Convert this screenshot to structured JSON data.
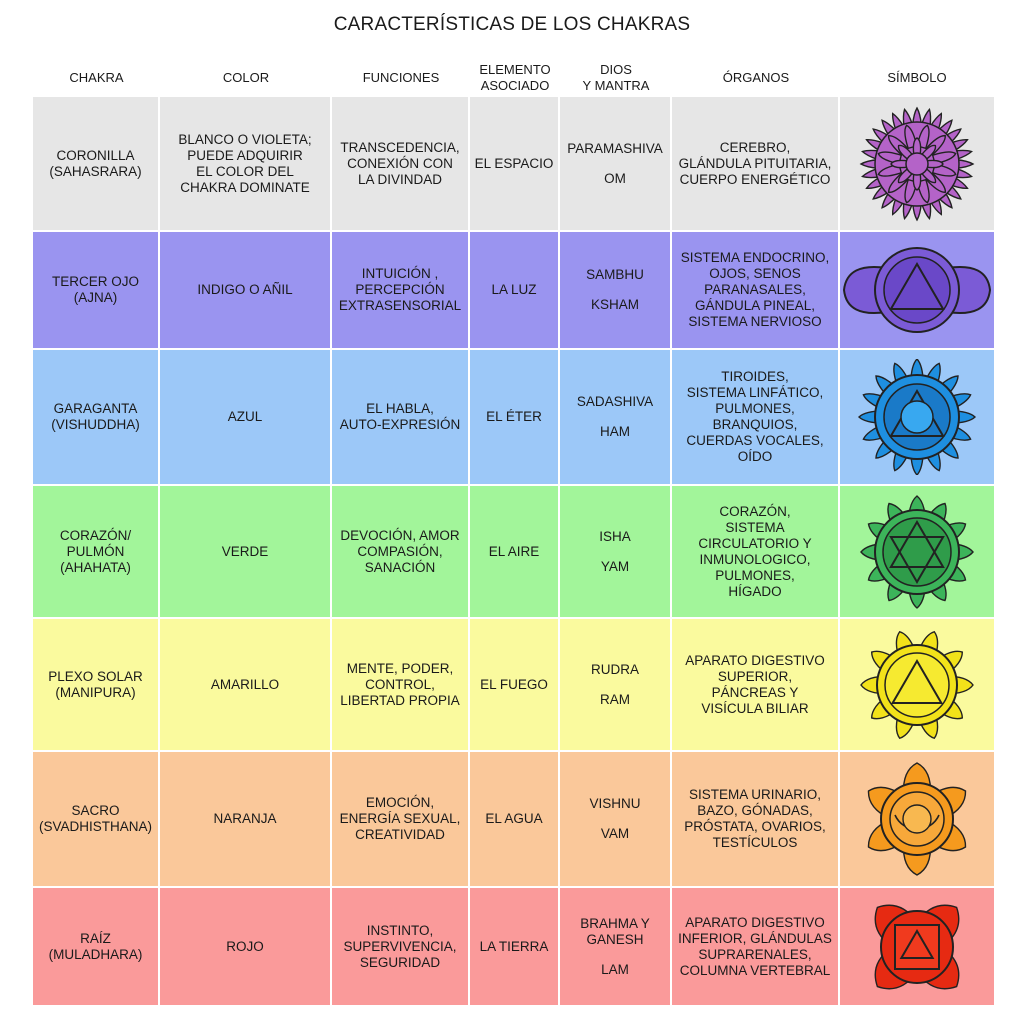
{
  "title": "CARACTERÍSTICAS DE LOS CHAKRAS",
  "headers": [
    "CHAKRA",
    "COLOR",
    "FUNCIONES",
    "ELEMENTO\nASOCIADO",
    "DIOS\nY MANTRA",
    "ÓRGANOS",
    "SÍMBOLO"
  ],
  "rows": [
    {
      "chakra": "CORONILLA\n(SAHASRARA)",
      "color": "BLANCO O VIOLETA;\nPUEDE ADQUIRIR\nEL COLOR DEL\nCHAKRA DOMINATE",
      "funciones": "TRANSCEDENCIA,\nCONEXIÓN CON\nLA DIVINDAD",
      "elemento": "EL ESPACIO",
      "dios": "PARAMASHIVA",
      "mantra": "OM",
      "organos": "CEREBRO,\nGLÁNDULA PITUITARIA,\nCUERPO ENERGÉTICO",
      "symbol_icon": "crown-chakra-icon",
      "bg": "#e6e6e6",
      "symbol_color": "#b463c8"
    },
    {
      "chakra": "TERCER OJO\n(AJNA)",
      "color": "INDIGO O AÑIL",
      "funciones": "INTUICIÓN ,\nPERCEPCIÓN\nEXTRASENSORIAL",
      "elemento": "LA LUZ",
      "dios": "SAMBHU",
      "mantra": "KSHAM",
      "organos": "SISTEMA ENDOCRINO,\nOJOS, SENOS\nPARANASALES,\nGÁNDULA PINEAL,\nSISTEMA NERVIOSO",
      "symbol_icon": "third-eye-chakra-icon",
      "bg": "#9a94f0",
      "symbol_color": "#7b5bd6"
    },
    {
      "chakra": "GARAGANTA\n(VISHUDDHA)",
      "color": "AZUL",
      "funciones": "EL HABLA,\nAUTO-EXPRESIÓN",
      "elemento": "EL ÉTER",
      "dios": "SADASHIVA",
      "mantra": "HAM",
      "organos": "TIROIDES,\nSISTEMA LINFÁTICO,\nPULMONES,\nBRANQUIOS,\nCUERDAS VOCALES,\nOÍDO",
      "symbol_icon": "throat-chakra-icon",
      "bg": "#9cc8f8",
      "symbol_color": "#1e8fe0"
    },
    {
      "chakra": "CORAZÓN/\nPULMÓN\n(AHAHATA)",
      "color": "VERDE",
      "funciones": "DEVOCIÓN, AMOR\nCOMPASIÓN,\nSANACIÓN",
      "elemento": "EL AIRE",
      "dios": "ISHA",
      "mantra": "YAM",
      "organos": "CORAZÓN,\nSISTEMA\nCIRCULATORIO Y\nINMUNOLOGICO,\nPULMONES,\nHÍGADO",
      "symbol_icon": "heart-chakra-icon",
      "bg": "#a2f59a",
      "symbol_color": "#3cb45a"
    },
    {
      "chakra": "PLEXO SOLAR\n(MANIPURA)",
      "color": "AMARILLO",
      "funciones": "MENTE, PODER,\nCONTROL,\nLIBERTAD PROPIA",
      "elemento": "EL FUEGO",
      "dios": "RUDRA",
      "mantra": "RAM",
      "organos": "APARATO DIGESTIVO\nSUPERIOR,\nPÁNCREAS Y\nVISÍCULA BILIAR",
      "symbol_icon": "solar-plexus-chakra-icon",
      "bg": "#fafa9e",
      "symbol_color": "#f2e21a"
    },
    {
      "chakra": "SACRO\n(SVADHISTHANA)",
      "color": "NARANJA",
      "funciones": "EMOCIÓN,\nENERGÍA SEXUAL,\nCREATIVIDAD",
      "elemento": "EL AGUA",
      "dios": "VISHNU",
      "mantra": "VAM",
      "organos": "SISTEMA URINARIO,\nBAZO, GÓNADAS,\nPRÓSTATA, OVARIOS,\nTESTÍCULOS",
      "symbol_icon": "sacral-chakra-icon",
      "bg": "#fac89a",
      "symbol_color": "#f59a1e"
    },
    {
      "chakra": "RAÍZ\n(MULADHARA)",
      "color": "ROJO",
      "funciones": "INSTINTO,\nSUPERVIVENCIA,\nSEGURIDAD",
      "elemento": "LA TIERRA",
      "dios": "BRAHMA Y\nGANESH",
      "mantra": "LAM",
      "organos": "APARATO DIGESTIVO\nINFERIOR, GLÁNDULAS\nSUPRARENALES,\nCOLUMNA VERTEBRAL",
      "symbol_icon": "root-chakra-icon",
      "bg": "#fa9a9a",
      "symbol_color": "#e62a12"
    }
  ]
}
